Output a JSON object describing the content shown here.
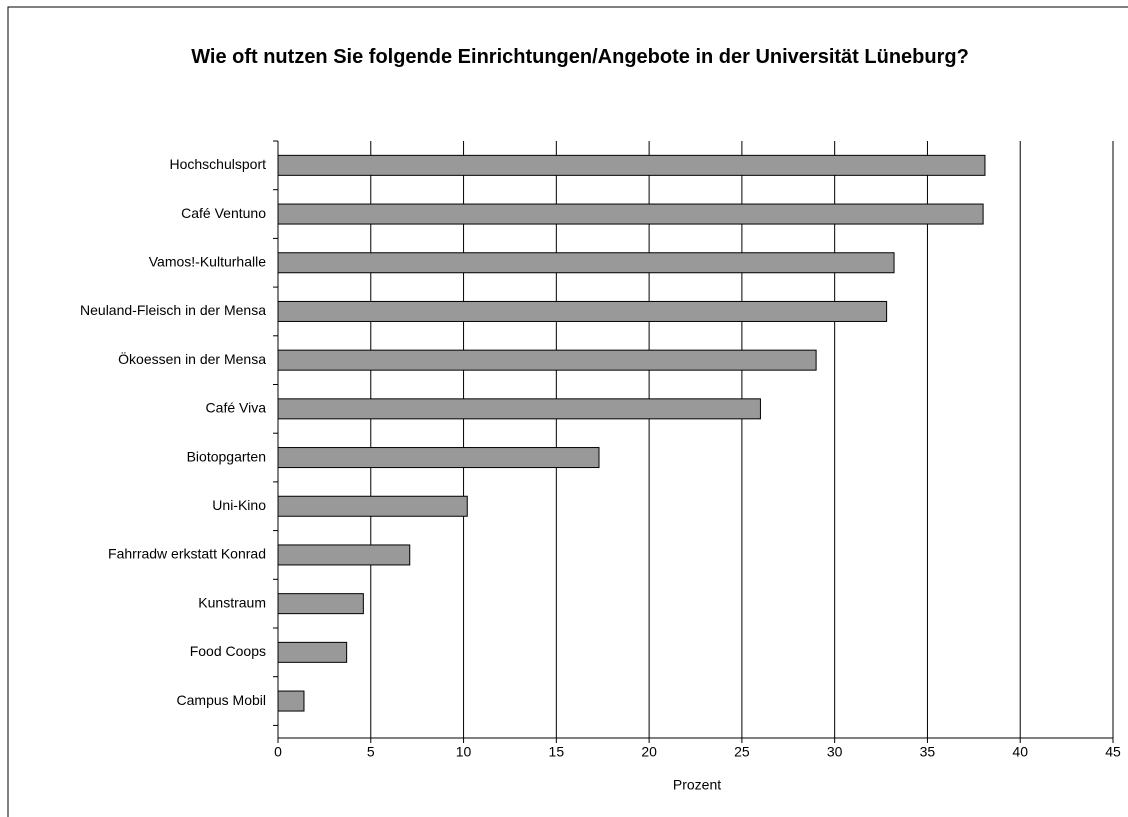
{
  "chart_data": {
    "type": "bar",
    "orientation": "horizontal",
    "title": "Wie oft nutzen Sie folgende Einrichtungen/Angebote in der Universität Lüneburg?",
    "categories": [
      "Hochschulsport",
      "Café Ventuno",
      "Vamos!-Kulturhalle",
      "Neuland-Fleisch in der Mensa",
      "Ökoessen in der Mensa",
      "Café Viva",
      "Biotopgarten",
      "Uni-Kino",
      "Fahrradw erkstatt Konrad",
      "Kunstraum",
      "Food Coops",
      "Campus Mobil"
    ],
    "values": [
      38.1,
      38.0,
      33.2,
      32.8,
      29.0,
      26.0,
      17.3,
      10.2,
      7.1,
      4.6,
      3.7,
      1.4
    ],
    "color": "#999999",
    "xlabel": "Prozent",
    "xlim": [
      0,
      45
    ],
    "xticks": [
      0,
      5,
      10,
      15,
      20,
      25,
      30,
      35,
      40,
      45
    ],
    "grid": true
  }
}
